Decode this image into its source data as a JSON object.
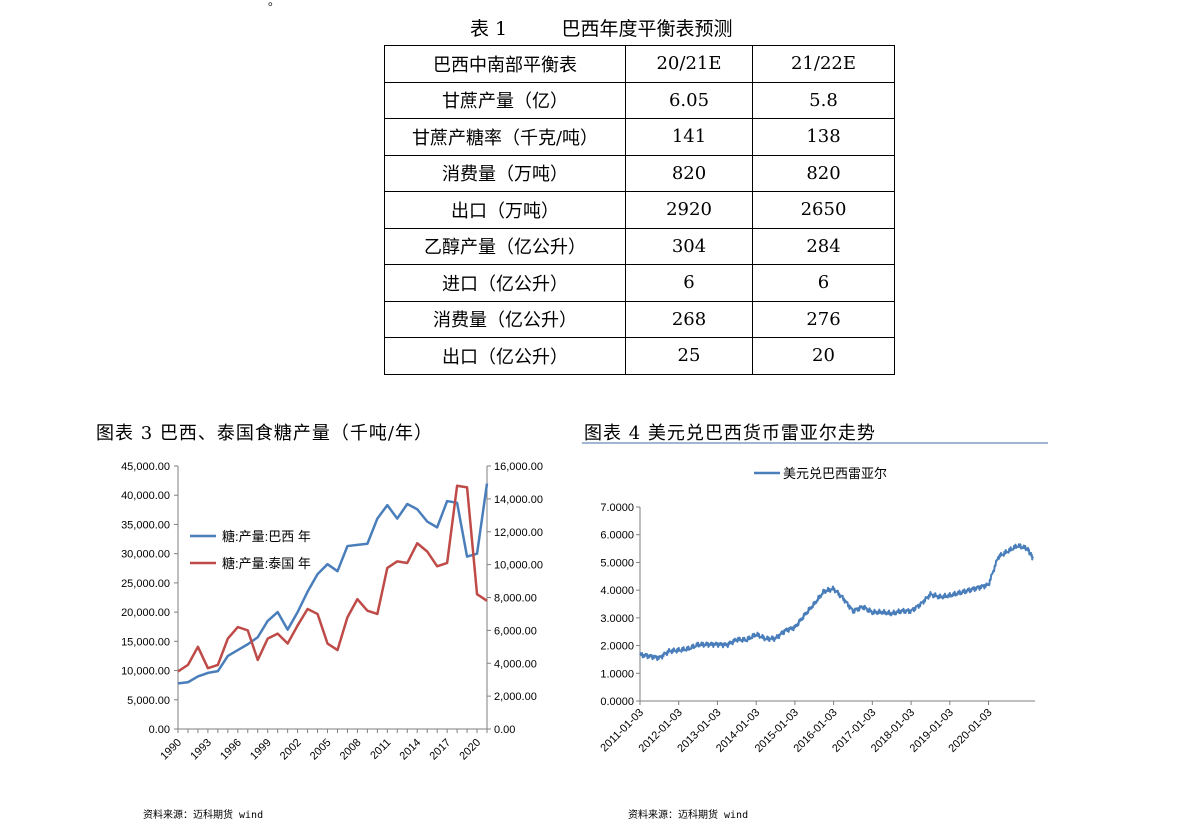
{
  "table": {
    "caption": "表 1         巴西年度平衡表预测",
    "header": [
      "巴西中南部平衡表",
      "20/21E",
      "21/22E"
    ],
    "rows": [
      [
        "甘蔗产量（亿）",
        "6.05",
        "5.8"
      ],
      [
        "甘蔗产糖率（千克/吨）",
        "141",
        "138"
      ],
      [
        "消费量（万吨）",
        "820",
        "820"
      ],
      [
        "出口（万吨）",
        "2920",
        "2650"
      ],
      [
        "乙醇产量（亿公升）",
        "304",
        "284"
      ],
      [
        "进口（亿公升）",
        "6",
        "6"
      ],
      [
        "消费量（亿公升）",
        "268",
        "276"
      ],
      [
        "出口（亿公升）",
        "25",
        "20"
      ]
    ]
  },
  "figures": {
    "fig3_title": "图表 3 巴西、泰国食糖产量（千吨/年）",
    "fig4_title": "图表 4   美元兑巴西货币雷亚尔走势",
    "fig3_source": "资料来源：迈科期货 wind",
    "fig4_source": "资料来源：迈科期货 wind"
  },
  "chart_data": [
    {
      "type": "line",
      "title": "",
      "x": [
        1990,
        1991,
        1992,
        1993,
        1994,
        1995,
        1996,
        1997,
        1998,
        1999,
        2000,
        2001,
        2002,
        2003,
        2004,
        2005,
        2006,
        2007,
        2008,
        2009,
        2010,
        2011,
        2012,
        2013,
        2014,
        2015,
        2016,
        2017,
        2018,
        2019,
        2020,
        2021
      ],
      "x_tick_labels": [
        "1990",
        "1993",
        "1996",
        "1999",
        "2002",
        "2005",
        "2008",
        "2011",
        "2014",
        "2017",
        "2020"
      ],
      "y_left_ticks": [
        "0.00",
        "5,000.00",
        "10,000.00",
        "15,000.00",
        "20,000.00",
        "25,000.00",
        "30,000.00",
        "35,000.00",
        "40,000.00",
        "45,000.00"
      ],
      "y_right_ticks": [
        "0.00",
        "2,000.00",
        "4,000.00",
        "6,000.00",
        "8,000.00",
        "10,000.00",
        "12,000.00",
        "14,000.00",
        "16,000.00"
      ],
      "ylim_left": [
        0,
        45000
      ],
      "ylim_right": [
        0,
        16000
      ],
      "legend_position": "upper-left",
      "series": [
        {
          "name": "糖:产量:巴西 年",
          "axis": "left",
          "color": "#4a7ebb",
          "values": [
            7800,
            8000,
            9000,
            9600,
            9900,
            12500,
            13500,
            14500,
            15700,
            18500,
            20000,
            17000,
            20000,
            23500,
            26500,
            28200,
            27000,
            31300,
            31500,
            31700,
            36000,
            38300,
            36000,
            38500,
            37600,
            35500,
            34500,
            39000,
            38700,
            29500,
            30000,
            42000
          ]
        },
        {
          "name": "糖:产量:泰国 年",
          "axis": "right",
          "color": "#be4b48",
          "values": [
            3500,
            3900,
            5000,
            3700,
            3900,
            5500,
            6200,
            6000,
            4200,
            5500,
            5800,
            5200,
            6300,
            7300,
            7000,
            5200,
            4800,
            6800,
            7900,
            7200,
            7000,
            9800,
            10200,
            10100,
            11300,
            10800,
            9900,
            10100,
            14800,
            14700,
            8200,
            7800
          ]
        }
      ]
    },
    {
      "type": "line",
      "title": "",
      "legend_entry": "美元兑巴西雷亚尔",
      "legend_position": "top",
      "color": "#4a7ebb",
      "ylim": [
        0,
        7
      ],
      "y_ticks": [
        "0.0000",
        "1.0000",
        "2.0000",
        "3.0000",
        "4.0000",
        "5.0000",
        "6.0000",
        "7.0000"
      ],
      "x_tick_labels": [
        "2011-01-03",
        "2012-01-03",
        "2013-01-03",
        "2014-01-03",
        "2015-01-03",
        "2016-01-03",
        "2017-01-03",
        "2018-01-03",
        "2019-01-03",
        "2020-01-03"
      ],
      "x": [
        2011.0,
        2011.25,
        2011.5,
        2011.75,
        2012.0,
        2012.25,
        2012.5,
        2012.75,
        2013.0,
        2013.25,
        2013.5,
        2013.75,
        2014.0,
        2014.25,
        2014.5,
        2014.75,
        2015.0,
        2015.25,
        2015.5,
        2015.75,
        2016.0,
        2016.25,
        2016.5,
        2016.75,
        2017.0,
        2017.25,
        2017.5,
        2017.75,
        2018.0,
        2018.25,
        2018.5,
        2018.75,
        2019.0,
        2019.25,
        2019.5,
        2019.75,
        2020.0,
        2020.25,
        2020.5,
        2020.75,
        2021.0,
        2021.15
      ],
      "values": [
        1.67,
        1.62,
        1.56,
        1.8,
        1.83,
        1.88,
        2.03,
        2.04,
        2.05,
        2.03,
        2.22,
        2.2,
        2.4,
        2.24,
        2.26,
        2.55,
        2.66,
        3.1,
        3.5,
        3.95,
        4.05,
        3.7,
        3.25,
        3.4,
        3.2,
        3.2,
        3.15,
        3.25,
        3.25,
        3.5,
        3.85,
        3.75,
        3.8,
        3.9,
        4.0,
        4.1,
        4.2,
        5.2,
        5.4,
        5.6,
        5.5,
        5.15
      ]
    }
  ]
}
